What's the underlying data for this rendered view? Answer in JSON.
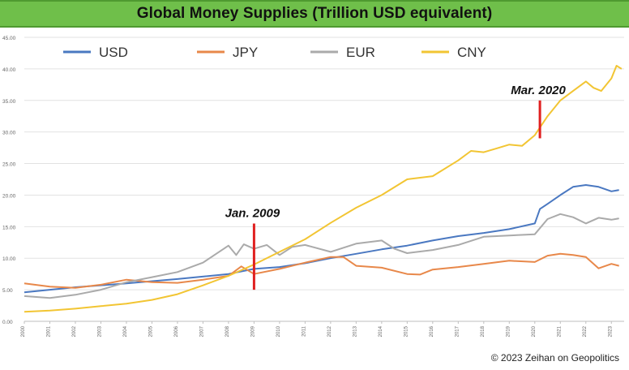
{
  "chart_data": {
    "type": "line",
    "title": "Global Money Supplies (Trillion USD equivalent)",
    "xlabel": "",
    "ylabel": "",
    "ylim": [
      0,
      45
    ],
    "y_ticks": [
      "0.00",
      "5.00",
      "10.00",
      "15.00",
      "20.00",
      "25.00",
      "30.00",
      "35.00",
      "40.00",
      "45.00"
    ],
    "xlim": [
      2000.0,
      2023.5
    ],
    "x_tick_years": [
      "2000",
      "2001",
      "2002",
      "2003",
      "2004",
      "2005",
      "2006",
      "2007",
      "2008",
      "2009",
      "2010",
      "2011",
      "2012",
      "2013",
      "2014",
      "2015",
      "2016",
      "2017",
      "2018",
      "2019",
      "2020",
      "2021",
      "2022",
      "2023"
    ],
    "grid": true,
    "legend_position": "top",
    "series": [
      {
        "name": "USD",
        "color": "#4a78c1",
        "x": [
          2000.0,
          2002.0,
          2004.0,
          2006.0,
          2008.0,
          2009.0,
          2010.0,
          2011.0,
          2012.0,
          2013.0,
          2014.0,
          2015.0,
          2016.0,
          2017.0,
          2018.0,
          2019.0,
          2020.0,
          2020.2,
          2020.5,
          2021.0,
          2021.5,
          2022.0,
          2022.5,
          2023.0,
          2023.3
        ],
        "y": [
          4.6,
          5.4,
          6.0,
          6.7,
          7.5,
          8.3,
          8.6,
          9.2,
          10.0,
          10.7,
          11.4,
          12.0,
          12.8,
          13.5,
          14.0,
          14.6,
          15.5,
          17.8,
          18.6,
          20.0,
          21.3,
          21.6,
          21.3,
          20.6,
          20.8
        ]
      },
      {
        "name": "JPY",
        "color": "#e8884a",
        "x": [
          2000.0,
          2001.0,
          2002.0,
          2003.0,
          2004.0,
          2005.0,
          2006.0,
          2007.0,
          2008.0,
          2008.5,
          2009.0,
          2010.0,
          2011.0,
          2012.0,
          2012.5,
          2013.0,
          2014.0,
          2015.0,
          2015.5,
          2016.0,
          2017.0,
          2018.0,
          2019.0,
          2020.0,
          2020.5,
          2021.0,
          2021.5,
          2022.0,
          2022.5,
          2023.0,
          2023.3
        ],
        "y": [
          6.0,
          5.5,
          5.3,
          5.8,
          6.6,
          6.2,
          6.1,
          6.6,
          7.2,
          8.7,
          7.5,
          8.3,
          9.3,
          10.2,
          10.2,
          8.8,
          8.5,
          7.5,
          7.4,
          8.2,
          8.6,
          9.1,
          9.6,
          9.4,
          10.4,
          10.7,
          10.5,
          10.2,
          8.4,
          9.1,
          8.8
        ]
      },
      {
        "name": "EUR",
        "color": "#aaaaaa",
        "x": [
          2000.0,
          2001.0,
          2002.0,
          2003.0,
          2004.0,
          2005.0,
          2006.0,
          2007.0,
          2008.0,
          2008.3,
          2008.6,
          2009.0,
          2009.5,
          2010.0,
          2010.5,
          2011.0,
          2012.0,
          2013.0,
          2014.0,
          2014.5,
          2015.0,
          2016.0,
          2017.0,
          2018.0,
          2019.0,
          2020.0,
          2020.5,
          2021.0,
          2021.5,
          2022.0,
          2022.5,
          2023.0,
          2023.3
        ],
        "y": [
          4.0,
          3.7,
          4.2,
          5.0,
          6.2,
          7.0,
          7.8,
          9.3,
          12.0,
          10.5,
          12.2,
          11.5,
          12.1,
          10.5,
          11.8,
          12.1,
          11.0,
          12.3,
          12.8,
          11.5,
          10.8,
          11.3,
          12.1,
          13.4,
          13.6,
          13.8,
          16.2,
          17.0,
          16.5,
          15.5,
          16.4,
          16.1,
          16.3
        ]
      },
      {
        "name": "CNY",
        "color": "#f2c533",
        "x": [
          2000.0,
          2001.0,
          2002.0,
          2003.0,
          2004.0,
          2005.0,
          2006.0,
          2007.0,
          2008.0,
          2009.0,
          2010.0,
          2011.0,
          2012.0,
          2013.0,
          2014.0,
          2015.0,
          2016.0,
          2017.0,
          2017.5,
          2018.0,
          2018.5,
          2019.0,
          2019.5,
          2020.0,
          2020.5,
          2021.0,
          2021.5,
          2022.0,
          2022.3,
          2022.6,
          2023.0,
          2023.2,
          2023.4
        ],
        "y": [
          1.5,
          1.7,
          2.0,
          2.4,
          2.8,
          3.4,
          4.3,
          5.7,
          7.2,
          9.0,
          11.0,
          13.0,
          15.6,
          18.0,
          20.0,
          22.5,
          23.0,
          25.5,
          27.0,
          26.8,
          27.4,
          28.0,
          27.8,
          29.5,
          32.5,
          35.0,
          36.5,
          38.0,
          37.0,
          36.5,
          38.5,
          40.5,
          40.0
        ]
      }
    ],
    "annotations": [
      {
        "text": "Jan. 2009",
        "x": 2009.0,
        "y_range": [
          5.0,
          15.5
        ]
      },
      {
        "text": "Mar. 2020",
        "x": 2020.2,
        "y_range": [
          29.0,
          35.0
        ]
      }
    ]
  },
  "footer": "© 2023 Zeihan on Geopolitics"
}
